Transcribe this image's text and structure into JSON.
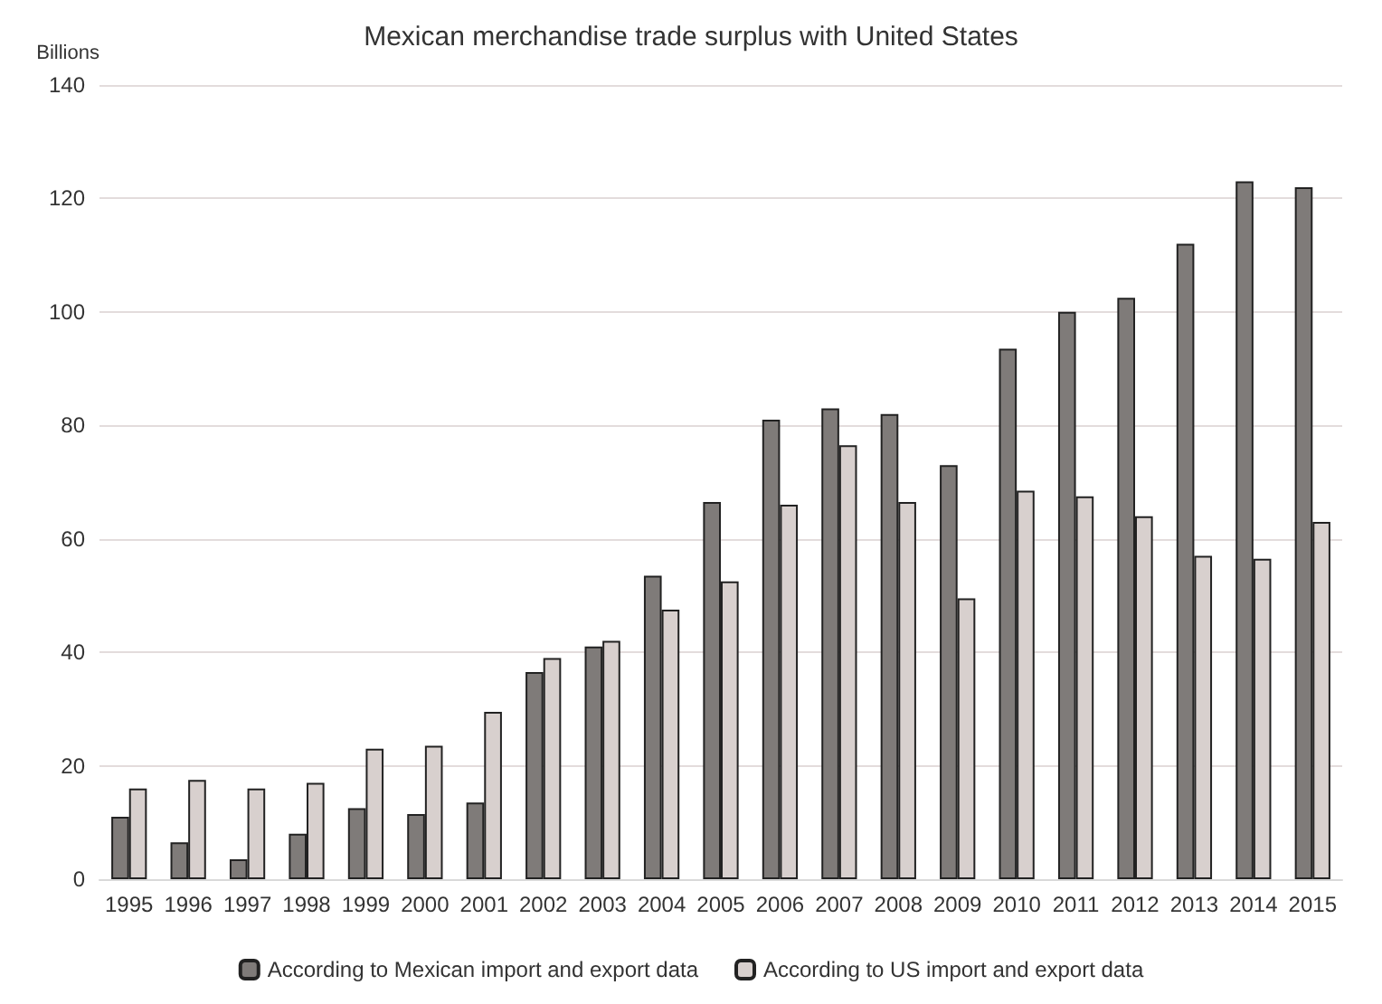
{
  "chart_data": {
    "type": "bar",
    "title": "Mexican merchandise trade surplus with United States",
    "ylabel": "Billions",
    "categories": [
      "1995",
      "1996",
      "1997",
      "1998",
      "1999",
      "2000",
      "2001",
      "2002",
      "2003",
      "2004",
      "2005",
      "2006",
      "2007",
      "2008",
      "2009",
      "2010",
      "2011",
      "2012",
      "2013",
      "2014",
      "2015"
    ],
    "series": [
      {
        "name": "According to Mexican import and export data",
        "color": "#7f7b79",
        "values": [
          11,
          6.5,
          3.5,
          8,
          12.5,
          11.5,
          13.5,
          36.5,
          41,
          53.5,
          66.5,
          81,
          83,
          82,
          73,
          93.5,
          100,
          102.5,
          112,
          123,
          122
        ]
      },
      {
        "name": "According to US import and export data",
        "color": "#d8d0ce",
        "values": [
          16,
          17.5,
          16,
          17,
          23,
          23.5,
          29.5,
          39,
          42,
          47.5,
          52.5,
          66,
          76.5,
          66.5,
          49.5,
          68.5,
          67.5,
          64,
          57,
          56.5,
          63
        ]
      }
    ],
    "ylim": [
      0,
      140
    ],
    "yticks": [
      0,
      20,
      40,
      60,
      80,
      100,
      120,
      140
    ],
    "grid": "y",
    "legend": "bottom"
  }
}
